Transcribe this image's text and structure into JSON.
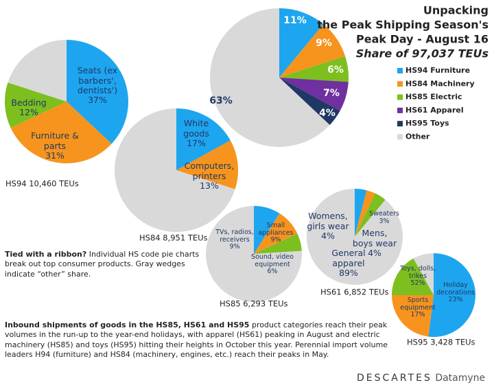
{
  "chart_data": [
    {
      "type": "pie",
      "title": [
        "Unpacking",
        "the Peak Shipping Season's",
        "Peak Day - August 16"
      ],
      "subtitle": "Share of 97,037 TEUs",
      "categories": [
        "HS94 Furniture",
        "HS84 Machinery",
        "HS85 Electric",
        "HS61 Apparel",
        "HS95 Toys",
        "Other"
      ],
      "values": [
        11,
        9,
        6,
        7,
        4,
        63
      ],
      "value_labels": [
        "11%",
        "9%",
        "6%",
        "7%",
        "4%",
        "63%"
      ],
      "colors": [
        "#1ea5ef",
        "#f7941d",
        "#7cbf1e",
        "#7030a0",
        "#1f3864",
        "#d9d9d9"
      ],
      "legend": "right"
    },
    {
      "type": "pie",
      "title": "HS94 10,460 TEUs",
      "categories": [
        "Seats (ex barbers', dentists')",
        "Furniture & parts",
        "Bedding",
        null
      ],
      "values": [
        37,
        31,
        12,
        20
      ],
      "value_labels": [
        "37%",
        "31%",
        "12%",
        null
      ],
      "colors": [
        "#1ea5ef",
        "#f7941d",
        "#7cbf1e",
        "#d9d9d9"
      ]
    },
    {
      "type": "pie",
      "title": "HS84 8,951 TEUs",
      "categories": [
        "White goods",
        "Computers, printers",
        null
      ],
      "values": [
        17,
        13,
        70
      ],
      "value_labels": [
        "17%",
        "13%",
        null
      ],
      "colors": [
        "#1ea5ef",
        "#f7941d",
        "#d9d9d9"
      ]
    },
    {
      "type": "pie",
      "title": "HS85 6,293 TEUs",
      "categories": [
        "TVs, radios, receivers",
        "Small appliances",
        "Sound, video equipment",
        null
      ],
      "values": [
        9,
        9,
        6,
        76
      ],
      "value_labels": [
        "9%",
        "9%",
        "6%",
        null
      ],
      "colors": [
        "#1ea5ef",
        "#f7941d",
        "#7cbf1e",
        "#d9d9d9"
      ]
    },
    {
      "type": "pie",
      "title": "HS61 6,852 TEUs",
      "categories": [
        "Womens, girls wear",
        "Sweaters",
        "Mens, boys wear",
        "General apparel"
      ],
      "values": [
        4,
        3,
        4,
        89
      ],
      "value_labels": [
        "4%",
        "3%",
        "4%",
        "89%"
      ],
      "colors": [
        "#1ea5ef",
        "#f7941d",
        "#7cbf1e",
        "#d9d9d9"
      ]
    },
    {
      "type": "pie",
      "title": "HS95 3,428 TEUs",
      "categories": [
        "Toys, dolls, trikes",
        "Holiday decorations",
        "Sports equipment",
        null
      ],
      "values": [
        52,
        23,
        17,
        8
      ],
      "value_labels": [
        "52%",
        "23%",
        "17%",
        null
      ],
      "colors": [
        "#1ea5ef",
        "#f7941d",
        "#7cbf1e",
        "#d9d9d9"
      ]
    }
  ],
  "notes": {
    "ribbon_bold": "Tied with a ribbon?",
    "ribbon_text": "Individual HS code pie charts break out top consumer products. Gray wedges indicate “other” share.",
    "body_bold": "Inbound shipments of goods in the HS85, HS61 and HS95",
    "body_text": "product categories reach their peak volumes in the run-up to the year-end holidays, with apparel (HS61) peaking in August and electric machinery (HS85) and toys (HS95) hitting their heights in October this year. Perennial import volume leaders H94 (furniture) and HS84 (machinery, engines, etc.) reach their peaks in May.",
    "logo_left": "DESCARTES",
    "logo_right": "Datamyne"
  }
}
